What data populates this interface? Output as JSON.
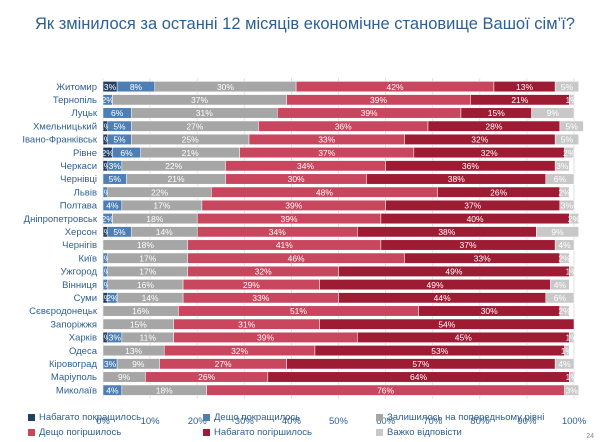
{
  "title": "Як змінилося за останні 12 місяців економічне становище Вашої сім’ї?",
  "page_number": "24",
  "chart_data": {
    "type": "bar",
    "orientation": "horizontal",
    "stacked": "100%",
    "categories": [
      "Житомир",
      "Тернопіль",
      "Луцьк",
      "Хмельницький",
      "Івано-Франківськ",
      "Рівне",
      "Черкаси",
      "Чернівці",
      "Львів",
      "Полтава",
      "Дніпропетровськ",
      "Херсон",
      "Чернігів",
      "Київ",
      "Ужгород",
      "Вінниця",
      "Суми",
      "Сєвєродонецьк",
      "Запоріжжя",
      "Харків",
      "Одеса",
      "Кіровоград",
      "Маріуполь",
      "Миколаїв"
    ],
    "series": [
      {
        "name": "Набагато покращилось",
        "color": "#1f3f66",
        "values": [
          3,
          0,
          0,
          1,
          1,
          2,
          1,
          0,
          0,
          0,
          0,
          1,
          0,
          0,
          0,
          0,
          1,
          0,
          0,
          1,
          0,
          0,
          0,
          0
        ],
        "labels": [
          "3%",
          "",
          "",
          "1%",
          "1%",
          "2%",
          "1%",
          "",
          "",
          "",
          "",
          "1%",
          "",
          "",
          "",
          "",
          "1%",
          "",
          "",
          "1%",
          "",
          "",
          "",
          ""
        ]
      },
      {
        "name": "Дещо покращилось",
        "color": "#4d7fb5",
        "values": [
          8,
          2,
          6,
          5,
          5,
          6,
          3,
          5,
          1,
          4,
          2,
          5,
          0,
          1,
          1,
          1,
          2,
          0,
          0,
          3,
          0,
          3,
          0,
          4
        ],
        "labels": [
          "8%",
          "2%",
          "6%",
          "5%",
          "5%",
          "6%",
          "3%",
          "5%",
          "1%",
          "4%",
          "2%",
          "5%",
          "",
          "1%",
          "1%",
          "1%",
          "2%",
          "",
          "",
          "3%",
          "",
          "3%",
          "",
          "4%"
        ]
      },
      {
        "name": "Залишилось на попередньому рівні",
        "color": "#a6a6a6",
        "values": [
          30,
          37,
          31,
          27,
          25,
          21,
          22,
          21,
          22,
          17,
          18,
          14,
          18,
          17,
          17,
          16,
          14,
          16,
          15,
          11,
          13,
          9,
          9,
          18
        ],
        "labels": [
          "30%",
          "37%",
          "31%",
          "27%",
          "25%",
          "21%",
          "22%",
          "21%",
          "22%",
          "17%",
          "18%",
          "14%",
          "18%",
          "17%",
          "17%",
          "16%",
          "14%",
          "16%",
          "15%",
          "11%",
          "13%",
          "9%",
          "9%",
          "18%"
        ]
      },
      {
        "name": "Дещо погіршилось",
        "color": "#c9475e",
        "values": [
          42,
          39,
          39,
          36,
          33,
          37,
          34,
          30,
          48,
          39,
          39,
          34,
          41,
          46,
          32,
          29,
          33,
          51,
          31,
          39,
          32,
          27,
          26,
          76
        ],
        "labels": [
          "42%",
          "39%",
          "39%",
          "36%",
          "33%",
          "37%",
          "34%",
          "30%",
          "48%",
          "39%",
          "39%",
          "34%",
          "41%",
          "46%",
          "32%",
          "29%",
          "33%",
          "51%",
          "31%",
          "39%",
          "32%",
          "27%",
          "26%",
          "76%"
        ]
      },
      {
        "name": "Набагато погіршилось",
        "color": "#9e1b34",
        "values": [
          13,
          21,
          15,
          28,
          32,
          32,
          36,
          38,
          26,
          37,
          40,
          38,
          37,
          33,
          49,
          49,
          44,
          30,
          54,
          45,
          53,
          57,
          64,
          0
        ],
        "labels": [
          "13%",
          "21%",
          "15%",
          "28%",
          "32%",
          "32%",
          "36%",
          "38%",
          "26%",
          "37%",
          "40%",
          "38%",
          "37%",
          "33%",
          "49%",
          "49%",
          "44%",
          "30%",
          "54%",
          "45%",
          "53%",
          "57%",
          "64%",
          ""
        ]
      },
      {
        "name": "Важко відповісти",
        "color": "#c8c8c8",
        "values": [
          5,
          1,
          9,
          5,
          5,
          2,
          3,
          6,
          2,
          3,
          2,
          9,
          4,
          2,
          1,
          4,
          6,
          2,
          0,
          1,
          1,
          4,
          1,
          3
        ],
        "labels": [
          "5%",
          "1%",
          "9%",
          "5%",
          "5%",
          "2%",
          "3%",
          "6%",
          "2%",
          "3%",
          "2%",
          "9%",
          "4%",
          "2%",
          "1%",
          "4%",
          "6%",
          "2%",
          "",
          "1%",
          "1%",
          "4%",
          "1%",
          "3%"
        ]
      }
    ],
    "x_ticks": [
      "0%",
      "10%",
      "20%",
      "30%",
      "40%",
      "50%",
      "60%",
      "70%",
      "80%",
      "90%",
      "100%"
    ],
    "xlim": [
      0,
      100
    ],
    "legend_position": "bottom"
  }
}
